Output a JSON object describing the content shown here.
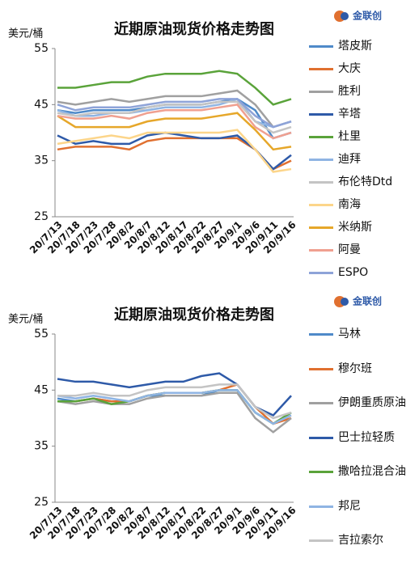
{
  "chart_data": [
    {
      "type": "line",
      "title": "近期原油现货价格走势图",
      "y_label": "美元/桶",
      "watermark": "金联创",
      "categories": [
        "20/7/13",
        "20/7/18",
        "20/7/23",
        "20/7/28",
        "20/8/2",
        "20/8/7",
        "20/8/12",
        "20/8/17",
        "20/8/22",
        "20/8/27",
        "20/9/1",
        "20/9/6",
        "20/9/11",
        "20/9/16"
      ],
      "ylim": [
        25,
        55
      ],
      "yticks": [
        25,
        35,
        45,
        55
      ],
      "series": [
        {
          "name": "塔皮斯",
          "color": "#4f8ac9",
          "values": [
            44,
            43.5,
            44,
            44,
            44,
            44.5,
            45,
            45,
            45,
            45.5,
            46,
            44,
            39,
            40
          ]
        },
        {
          "name": "大庆",
          "color": "#e07030",
          "values": [
            37,
            37.5,
            37.5,
            37.5,
            37,
            38.5,
            39,
            39,
            39,
            39,
            39,
            37,
            33.5,
            35
          ]
        },
        {
          "name": "胜利",
          "color": "#a0a0a0",
          "values": [
            45.5,
            45,
            45.5,
            46,
            45.5,
            46,
            46.5,
            46.5,
            46.5,
            47,
            47.5,
            45,
            41,
            42
          ]
        },
        {
          "name": "辛塔",
          "color": "#2e5aa8",
          "values": [
            39.5,
            38,
            38.5,
            38,
            38,
            39.5,
            40,
            39.5,
            39,
            39,
            39.5,
            37,
            33.5,
            36
          ]
        },
        {
          "name": "杜里",
          "color": "#5aa33a",
          "values": [
            48,
            48,
            48.5,
            49,
            49,
            50,
            50.5,
            50.5,
            50.5,
            51,
            50.5,
            48,
            45,
            46
          ]
        },
        {
          "name": "迪拜",
          "color": "#8fb4e3",
          "values": [
            44,
            43,
            43,
            43.5,
            43.5,
            44,
            44.5,
            44.5,
            44.5,
            45,
            46,
            42,
            41,
            42
          ]
        },
        {
          "name": "布伦特Dtd",
          "color": "#c4c4c4",
          "values": [
            43.5,
            43,
            43.5,
            43.5,
            43.5,
            44.5,
            45,
            45,
            45,
            45.5,
            45.5,
            42,
            40,
            41
          ]
        },
        {
          "name": "南海",
          "color": "#fcd58a",
          "values": [
            38,
            38.5,
            39,
            39.5,
            39,
            40,
            40,
            40,
            40,
            40,
            40.5,
            37,
            33,
            33.5
          ]
        },
        {
          "name": "米纳斯",
          "color": "#e6a72a",
          "values": [
            43,
            41,
            41,
            41,
            41,
            42,
            42.5,
            42.5,
            42.5,
            43,
            43.5,
            40.5,
            37,
            37.5
          ]
        },
        {
          "name": "阿曼",
          "color": "#f0a090",
          "values": [
            43,
            42.5,
            42.5,
            43,
            42.5,
            43.5,
            44,
            44,
            44,
            44.5,
            45,
            41,
            39,
            40
          ]
        },
        {
          "name": "ESPO",
          "color": "#8ea3d8",
          "values": [
            45,
            44,
            44.5,
            44.5,
            44.5,
            45,
            45.5,
            45.5,
            45.5,
            46,
            46,
            43,
            41,
            42
          ]
        }
      ]
    },
    {
      "type": "line",
      "title": "近期原油现货价格走势图",
      "y_label": "美元/桶",
      "watermark": "金联创",
      "categories": [
        "20/7/13",
        "20/7/18",
        "20/7/23",
        "20/7/28",
        "20/8/2",
        "20/8/7",
        "20/8/12",
        "20/8/17",
        "20/8/22",
        "20/8/27",
        "20/9/1",
        "20/9/6",
        "20/9/11",
        "20/9/16"
      ],
      "ylim": [
        25,
        55
      ],
      "yticks": [
        25,
        35,
        45,
        55
      ],
      "series": [
        {
          "name": "马林",
          "color": "#4f8ac9",
          "values": [
            43.5,
            43,
            43.5,
            43,
            43,
            44,
            44,
            44,
            44,
            45,
            45,
            41,
            39,
            41
          ]
        },
        {
          "name": "穆尔班",
          "color": "#e07030",
          "values": [
            43,
            43,
            43.5,
            43,
            43,
            44,
            44.5,
            44.5,
            44.5,
            45,
            46,
            42,
            39,
            40
          ]
        },
        {
          "name": "伊朗重质原油",
          "color": "#a0a0a0",
          "values": [
            43,
            42.5,
            43,
            42.5,
            42.5,
            43.5,
            44,
            44,
            44,
            44.5,
            44.5,
            40,
            37.5,
            40
          ]
        },
        {
          "name": "巴士拉轻质",
          "color": "#2e5aa8",
          "values": [
            47,
            46.5,
            46.5,
            46,
            45.5,
            46,
            46.5,
            46.5,
            47.5,
            48,
            46,
            42,
            40.5,
            44
          ]
        },
        {
          "name": "撒哈拉混合油",
          "color": "#5aa33a",
          "values": [
            43,
            43,
            43.5,
            42.5,
            43,
            44,
            44.5,
            44.5,
            44.5,
            45,
            45,
            41,
            39,
            41
          ]
        },
        {
          "name": "邦尼",
          "color": "#8fb4e3",
          "values": [
            44,
            43.5,
            44,
            43.5,
            43,
            44,
            44.5,
            44.5,
            44.5,
            45,
            45,
            41,
            39,
            40.5
          ]
        },
        {
          "name": "吉拉索尔",
          "color": "#c4c4c4",
          "values": [
            44,
            44,
            44.5,
            44,
            44,
            45,
            45.5,
            45.5,
            45.5,
            46,
            46,
            42,
            40,
            41
          ]
        }
      ]
    }
  ]
}
